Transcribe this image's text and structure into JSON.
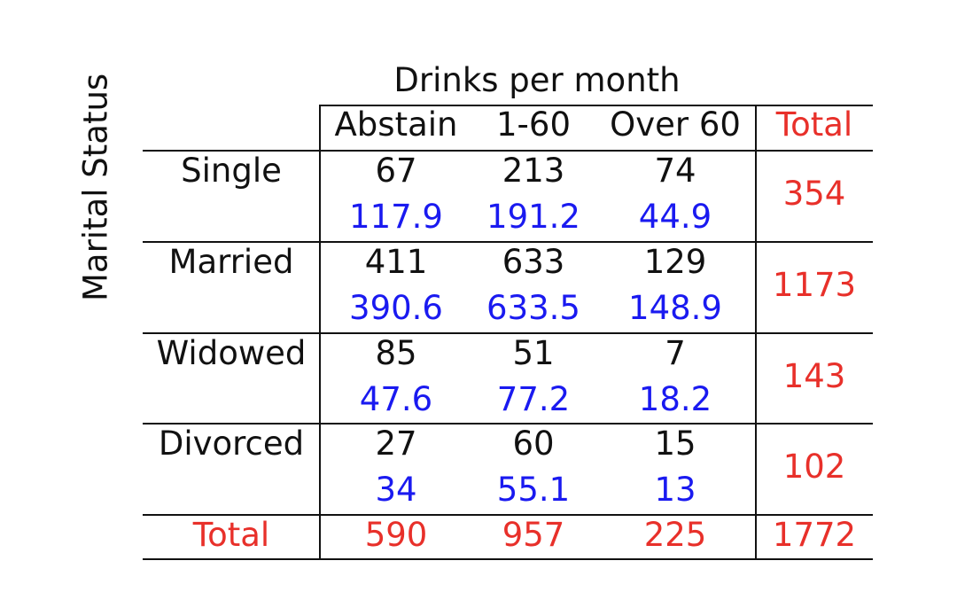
{
  "column_group_label": "Drinks per month",
  "row_group_label": "Marital Status",
  "columns": [
    "Abstain",
    "1-60",
    "Over 60"
  ],
  "total_label": "Total",
  "rows": [
    {
      "label": "Single",
      "observed": [
        "67",
        "213",
        "74"
      ],
      "expected": [
        "117.9",
        "191.2",
        "44.9"
      ],
      "total": "354"
    },
    {
      "label": "Married",
      "observed": [
        "411",
        "633",
        "129"
      ],
      "expected": [
        "390.6",
        "633.5",
        "148.9"
      ],
      "total": "1173"
    },
    {
      "label": "Widowed",
      "observed": [
        "85",
        "51",
        "7"
      ],
      "expected": [
        "47.6",
        "77.2",
        "18.2"
      ],
      "total": "143"
    },
    {
      "label": "Divorced",
      "observed": [
        "27",
        "60",
        "15"
      ],
      "expected": [
        "34",
        "55.1",
        "13"
      ],
      "total": "102"
    }
  ],
  "column_totals": [
    "590",
    "957",
    "225"
  ],
  "grand_total": "1772",
  "colors": {
    "observed": "#111111",
    "expected": "#1a1af0",
    "totals": "#e8302a"
  }
}
